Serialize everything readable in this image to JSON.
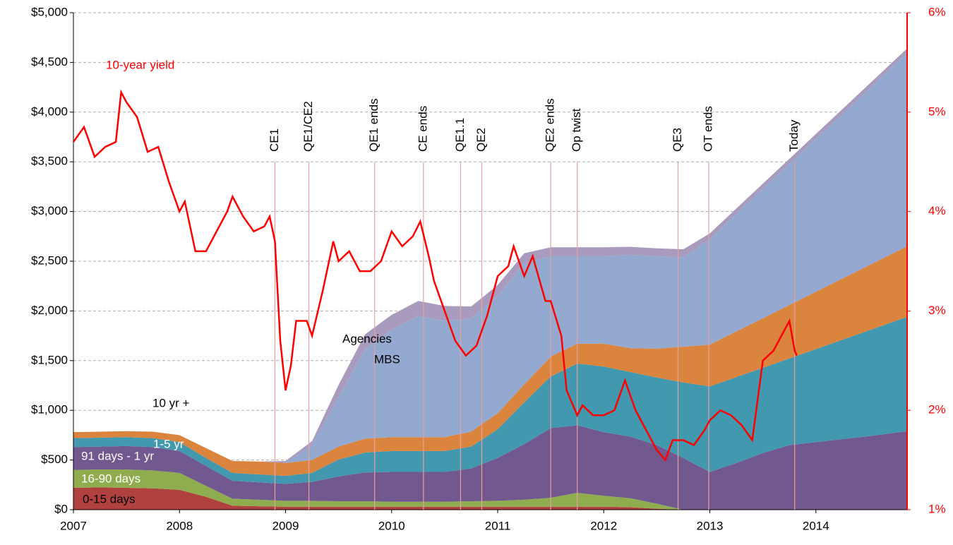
{
  "chart_data": {
    "type": "area",
    "x": [
      2007,
      2007.25,
      2007.5,
      2007.75,
      2008,
      2008.25,
      2008.5,
      2008.75,
      2009,
      2009.25,
      2009.5,
      2009.75,
      2010,
      2010.25,
      2010.5,
      2010.75,
      2011,
      2011.25,
      2011.5,
      2011.75,
      2012,
      2012.25,
      2012.5,
      2012.75,
      2013,
      2013.25,
      2013.5,
      2013.75,
      2014,
      2014.25,
      2014.5,
      2014.86
    ],
    "series": [
      {
        "name": "0-15 days",
        "color": "#b0413e",
        "values": [
          220,
          225,
          220,
          215,
          200,
          130,
          40,
          35,
          30,
          30,
          30,
          30,
          30,
          30,
          30,
          30,
          30,
          30,
          30,
          30,
          30,
          25,
          10,
          0,
          0,
          0,
          0,
          0,
          0,
          0,
          0,
          0
        ]
      },
      {
        "name": "16-90 days",
        "color": "#8fac4f",
        "values": [
          180,
          180,
          185,
          180,
          170,
          110,
          70,
          65,
          60,
          60,
          55,
          55,
          50,
          50,
          50,
          55,
          60,
          70,
          90,
          140,
          110,
          90,
          50,
          0,
          0,
          0,
          0,
          0,
          0,
          0,
          0,
          0
        ]
      },
      {
        "name": "91 days - 1 yr",
        "color": "#71588f",
        "values": [
          230,
          230,
          235,
          235,
          220,
          200,
          180,
          175,
          170,
          190,
          250,
          290,
          300,
          300,
          300,
          330,
          430,
          560,
          700,
          680,
          640,
          620,
          590,
          520,
          380,
          470,
          570,
          650,
          680,
          710,
          740,
          790
        ]
      },
      {
        "name": "1-5 yr",
        "color": "#4198af",
        "values": [
          90,
          90,
          90,
          90,
          90,
          80,
          80,
          80,
          80,
          90,
          170,
          200,
          210,
          210,
          210,
          220,
          290,
          420,
          520,
          620,
          660,
          650,
          680,
          760,
          860,
          864,
          858,
          872,
          936,
          1000,
          1064,
          1150
        ]
      },
      {
        "name": "10 yr +",
        "color": "#db843d",
        "values": [
          60,
          60,
          60,
          65,
          70,
          100,
          120,
          130,
          130,
          130,
          130,
          140,
          140,
          140,
          140,
          150,
          160,
          180,
          200,
          200,
          230,
          240,
          290,
          360,
          420,
          459,
          498,
          537,
          576,
          615,
          654,
          710
        ]
      },
      {
        "name": "MBS",
        "color": "#93a9cf",
        "values": [
          0,
          0,
          0,
          0,
          0,
          0,
          0,
          0,
          0,
          150,
          500,
          900,
          1080,
          1220,
          1170,
          1140,
          1180,
          1220,
          1010,
          880,
          880,
          940,
          930,
          900,
          1060,
          1187,
          1304,
          1421,
          1538,
          1655,
          1772,
          1950
        ]
      },
      {
        "name": "Agencies",
        "color": "#a99bbd",
        "values": [
          0,
          0,
          0,
          0,
          0,
          0,
          0,
          0,
          20,
          40,
          120,
          150,
          150,
          150,
          150,
          120,
          110,
          100,
          90,
          90,
          90,
          80,
          80,
          80,
          60,
          50,
          50,
          50,
          50,
          50,
          50,
          40
        ]
      }
    ],
    "line": {
      "name": "10-year yield",
      "color": "#ff0000",
      "axis": "y2",
      "x": [
        2007,
        2007.1,
        2007.2,
        2007.3,
        2007.4,
        2007.45,
        2007.5,
        2007.6,
        2007.7,
        2007.8,
        2007.9,
        2008,
        2008.05,
        2008.15,
        2008.25,
        2008.35,
        2008.45,
        2008.5,
        2008.6,
        2008.7,
        2008.8,
        2008.85,
        2008.9,
        2008.95,
        2009,
        2009.05,
        2009.1,
        2009.2,
        2009.25,
        2009.35,
        2009.45,
        2009.5,
        2009.6,
        2009.7,
        2009.8,
        2009.9,
        2010,
        2010.1,
        2010.2,
        2010.27,
        2010.35,
        2010.4,
        2010.5,
        2010.6,
        2010.7,
        2010.8,
        2010.9,
        2011,
        2011.1,
        2011.15,
        2011.25,
        2011.33,
        2011.45,
        2011.5,
        2011.6,
        2011.65,
        2011.75,
        2011.8,
        2011.9,
        2012,
        2012.1,
        2012.2,
        2012.3,
        2012.4,
        2012.5,
        2012.58,
        2012.65,
        2012.75,
        2012.85,
        2012.95,
        2013,
        2013.1,
        2013.2,
        2013.3,
        2013.4,
        2013.5,
        2013.6,
        2013.7,
        2013.75,
        2013.8,
        2013.82
      ],
      "values": [
        4.7,
        4.85,
        4.55,
        4.65,
        4.7,
        5.2,
        5.1,
        4.95,
        4.6,
        4.65,
        4.3,
        4.0,
        4.1,
        3.6,
        3.6,
        3.8,
        4.0,
        4.15,
        3.95,
        3.8,
        3.85,
        3.95,
        3.7,
        2.7,
        2.2,
        2.45,
        2.9,
        2.9,
        2.75,
        3.2,
        3.7,
        3.5,
        3.6,
        3.4,
        3.4,
        3.5,
        3.8,
        3.65,
        3.75,
        3.9,
        3.55,
        3.3,
        3.0,
        2.7,
        2.55,
        2.65,
        2.95,
        3.35,
        3.45,
        3.65,
        3.35,
        3.55,
        3.1,
        3.1,
        2.75,
        2.2,
        1.95,
        2.05,
        1.95,
        1.95,
        2.0,
        2.3,
        2.0,
        1.8,
        1.6,
        1.5,
        1.7,
        1.7,
        1.65,
        1.8,
        1.9,
        2.0,
        1.95,
        1.85,
        1.7,
        2.5,
        2.6,
        2.8,
        2.9,
        2.6,
        2.55
      ]
    },
    "events": [
      {
        "label": "CE1",
        "x": 2008.9
      },
      {
        "label": "QE1/CE2",
        "x": 2009.22
      },
      {
        "label": "QE1 ends",
        "x": 2009.84
      },
      {
        "label": "CE ends",
        "x": 2010.3
      },
      {
        "label": "QE1.1",
        "x": 2010.65
      },
      {
        "label": "QE2",
        "x": 2010.85
      },
      {
        "label": "QE2 ends",
        "x": 2011.5
      },
      {
        "label": "Op twist",
        "x": 2011.75
      },
      {
        "label": "QE3",
        "x": 2012.7
      },
      {
        "label": "OT ends",
        "x": 2012.99
      },
      {
        "label": "Today",
        "x": 2013.8
      }
    ],
    "xlim": [
      2007,
      2014.86
    ],
    "xticks": [
      2007,
      2008,
      2009,
      2010,
      2011,
      2012,
      2013,
      2014
    ],
    "ylim": [
      0,
      5000
    ],
    "yticks": [
      {
        "value": 0,
        "label": "$0"
      },
      {
        "value": 500,
        "label": "$500"
      },
      {
        "value": 1000,
        "label": "$1,000"
      },
      {
        "value": 1500,
        "label": "$1,500"
      },
      {
        "value": 2000,
        "label": "$2,000"
      },
      {
        "value": 2500,
        "label": "$2,500"
      },
      {
        "value": 3000,
        "label": "$3,000"
      },
      {
        "value": 3500,
        "label": "$3,500"
      },
      {
        "value": 4000,
        "label": "$4,000"
      },
      {
        "value": 4500,
        "label": "$4,500"
      },
      {
        "value": 5000,
        "label": "$5,000"
      }
    ],
    "y2lim": [
      1,
      6
    ],
    "y2ticks": [
      {
        "value": 1,
        "label": "1%"
      },
      {
        "value": 2,
        "label": "2%"
      },
      {
        "value": 3,
        "label": "3%"
      },
      {
        "value": 4,
        "label": "4%"
      },
      {
        "value": 5,
        "label": "5%"
      },
      {
        "value": 6,
        "label": "6%"
      }
    ],
    "grid": true
  }
}
